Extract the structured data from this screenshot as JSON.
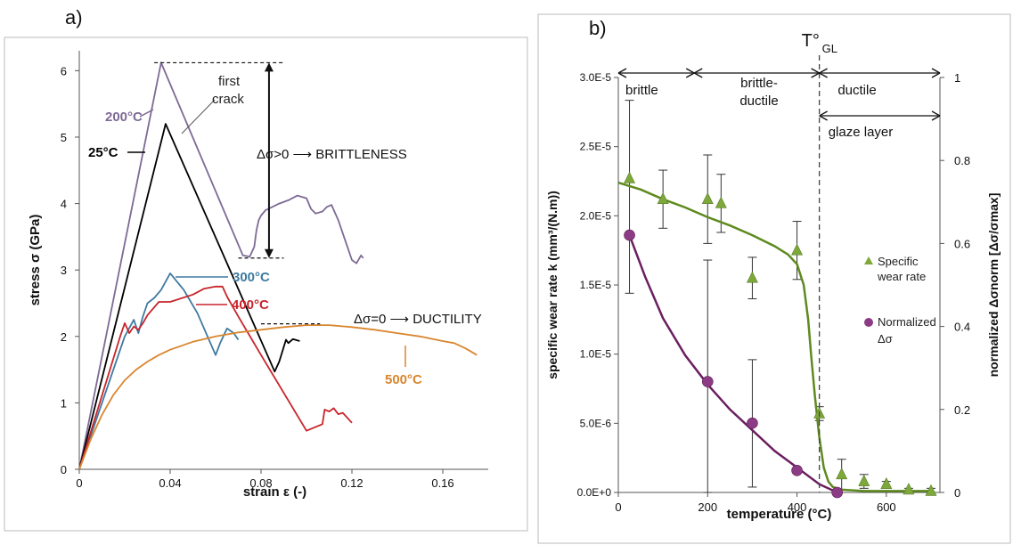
{
  "panels": {
    "a": {
      "label": "a)"
    },
    "b": {
      "label": "b)"
    }
  },
  "colors": {
    "c200": "#7d6a95",
    "c25": "#000000",
    "c300": "#3f7aa0",
    "c400": "#c8242b",
    "c500": "#d9862e",
    "wear": "#5e8a1f",
    "wear_marker": "#7ea83a",
    "norm": "#6a1f60",
    "norm_marker": "#8c3c85",
    "dashed": "#333333"
  },
  "chart_data": [
    {
      "panel": "a",
      "type": "line",
      "xlabel": "strain ε (-)",
      "ylabel": "stress σ (GPa)",
      "xlim": [
        0,
        0.18
      ],
      "ylim": [
        0,
        6.3
      ],
      "xticks": [
        "0",
        "0.04",
        "0.08",
        "0.12",
        "0.16"
      ],
      "xtick_values": [
        0,
        0.04,
        0.08,
        0.12,
        0.16
      ],
      "yticks": [
        "0",
        "1",
        "2",
        "3",
        "4",
        "5",
        "6"
      ],
      "ytick_values": [
        0,
        1,
        2,
        3,
        4,
        5,
        6
      ],
      "grid": false,
      "series": [
        {
          "name": "200°C",
          "color_key": "c200",
          "x": [
            0,
            0.036,
            0.072,
            0.075,
            0.077,
            0.078,
            0.079,
            0.08,
            0.082,
            0.085,
            0.088,
            0.092,
            0.096,
            0.1,
            0.102,
            0.104,
            0.107,
            0.109,
            0.111,
            0.114,
            0.116,
            0.118,
            0.12,
            0.122,
            0.124,
            0.125
          ],
          "y": [
            0,
            6.12,
            3.22,
            3.2,
            3.35,
            3.6,
            3.75,
            3.82,
            3.9,
            3.95,
            4.0,
            4.05,
            4.12,
            4.08,
            3.92,
            3.85,
            3.88,
            3.95,
            3.98,
            3.75,
            3.55,
            3.35,
            3.15,
            3.1,
            3.22,
            3.18
          ]
        },
        {
          "name": "25°C",
          "color_key": "c25",
          "x": [
            0,
            0.038,
            0.086,
            0.088,
            0.091,
            0.092,
            0.094,
            0.096,
            0.097
          ],
          "y": [
            0,
            5.2,
            1.47,
            1.62,
            1.95,
            1.9,
            1.96,
            1.94,
            1.93
          ]
        },
        {
          "name": "300°C",
          "color_key": "c300",
          "x": [
            0,
            0.02,
            0.024,
            0.026,
            0.028,
            0.03,
            0.033,
            0.036,
            0.04,
            0.046,
            0.052,
            0.06,
            0.062,
            0.065,
            0.068,
            0.07
          ],
          "y": [
            0,
            2.0,
            2.25,
            2.05,
            2.3,
            2.5,
            2.58,
            2.7,
            2.95,
            2.7,
            2.35,
            1.72,
            1.9,
            2.12,
            2.05,
            1.95
          ]
        },
        {
          "name": "400°C",
          "color_key": "c400",
          "x": [
            0,
            0.018,
            0.02,
            0.022,
            0.024,
            0.026,
            0.028,
            0.03,
            0.035,
            0.04,
            0.05,
            0.055,
            0.06,
            0.063,
            0.065,
            0.07,
            0.08,
            0.09,
            0.1,
            0.107,
            0.108,
            0.11,
            0.112,
            0.114,
            0.116,
            0.12
          ],
          "y": [
            0,
            2.0,
            2.2,
            2.05,
            2.15,
            2.1,
            2.2,
            2.32,
            2.52,
            2.52,
            2.63,
            2.72,
            2.75,
            2.75,
            2.6,
            2.3,
            1.72,
            1.15,
            0.58,
            0.68,
            0.9,
            0.87,
            0.92,
            0.83,
            0.85,
            0.7
          ]
        },
        {
          "name": "500°C",
          "color_key": "c500",
          "x": [
            0,
            0.005,
            0.01,
            0.015,
            0.02,
            0.025,
            0.03,
            0.035,
            0.04,
            0.05,
            0.06,
            0.07,
            0.08,
            0.09,
            0.1,
            0.11,
            0.12,
            0.13,
            0.14,
            0.15,
            0.16,
            0.165,
            0.17,
            0.175
          ],
          "y": [
            0,
            0.45,
            0.82,
            1.12,
            1.34,
            1.5,
            1.62,
            1.72,
            1.8,
            1.92,
            2.0,
            2.06,
            2.1,
            2.14,
            2.17,
            2.17,
            2.14,
            2.1,
            2.05,
            2.0,
            1.93,
            1.9,
            1.82,
            1.72
          ]
        }
      ],
      "labels": [
        "200°C",
        "25°C",
        "300°C",
        "400°C",
        "500°C"
      ],
      "annotations": {
        "first_crack": "first\ncrack",
        "brittleness": "Δσ>0 ⟶ BRITTLENESS",
        "ductility": "Δσ=0 ⟶ DUCTILITY"
      }
    },
    {
      "panel": "b",
      "type": "scatter",
      "xlabel": "temperature (°C)",
      "ylabel": "specific wear rate k (mm³/(N.m))",
      "y2label": "normalized Δσnorm [Δσ/σmax]",
      "xlim": [
        0,
        720
      ],
      "ylim": [
        0,
        3e-05
      ],
      "y2lim": [
        0,
        1
      ],
      "xticks": [
        "0",
        "200",
        "400",
        "600"
      ],
      "xtick_values": [
        0,
        200,
        400,
        600
      ],
      "yticks": [
        "0.0E+0",
        "5.0E-6",
        "1.0E-5",
        "1.5E-5",
        "2.0E-5",
        "2.5E-5",
        "3.0E-5"
      ],
      "ytick_values": [
        0,
        5e-06,
        1e-05,
        1.5e-05,
        2e-05,
        2.5e-05,
        3e-05
      ],
      "y2ticks": [
        "0",
        "0.2",
        "0.4",
        "0.6",
        "0.8",
        "1"
      ],
      "y2tick_values": [
        0,
        0.2,
        0.4,
        0.6,
        0.8,
        1
      ],
      "grid": false,
      "transition": {
        "label": "T°",
        "sub": "GL",
        "x": 450
      },
      "regions": [
        {
          "label": "brittle",
          "from": 0,
          "to": 170
        },
        {
          "label": "brittle-\nductile",
          "from": 170,
          "to": 450
        },
        {
          "label": "ductile",
          "from": 450,
          "to": 720
        },
        {
          "label": "glaze layer",
          "from": 450,
          "to": 720
        }
      ],
      "series": [
        {
          "name": "Specific\nwear rate",
          "axis": "left",
          "marker": "triangle",
          "points": [
            {
              "x": 25,
              "y": 2.27e-05,
              "err": 0
            },
            {
              "x": 100,
              "y": 2.12e-05,
              "err": 2.1e-06
            },
            {
              "x": 200,
              "y": 2.12e-05,
              "err": 3.2e-06
            },
            {
              "x": 230,
              "y": 2.09e-05,
              "err": 2.1e-06
            },
            {
              "x": 300,
              "y": 1.55e-05,
              "err": 1.5e-06
            },
            {
              "x": 400,
              "y": 1.75e-05,
              "err": 2.1e-06
            },
            {
              "x": 450,
              "y": 5.7e-06,
              "err": 5e-07
            },
            {
              "x": 500,
              "y": 1.3e-06,
              "err": 1.1e-06
            },
            {
              "x": 550,
              "y": 8e-07,
              "err": 5e-07
            },
            {
              "x": 600,
              "y": 6e-07,
              "err": 2e-07
            },
            {
              "x": 650,
              "y": 2e-07,
              "err": 1e-07
            },
            {
              "x": 700,
              "y": 1e-07,
              "err": 2e-07
            }
          ],
          "fit_x": [
            0,
            50,
            100,
            150,
            200,
            250,
            300,
            350,
            380,
            400,
            415,
            425,
            432,
            440,
            445,
            450,
            460,
            470,
            480,
            500,
            550,
            600,
            700
          ],
          "fit_y": [
            2.24e-05,
            2.19e-05,
            2.12e-05,
            2.06e-05,
            1.99e-05,
            1.93e-05,
            1.86e-05,
            1.78e-05,
            1.72e-05,
            1.65e-05,
            1.5e-05,
            1.25e-05,
            9.8e-06,
            7e-06,
            5.5e-06,
            4e-06,
            1.8e-06,
            8e-07,
            4e-07,
            2e-07,
            1e-07,
            1e-07,
            1e-07
          ]
        },
        {
          "name": "Normalized\nΔσ",
          "axis": "right",
          "marker": "circle",
          "points": [
            {
              "x": 25,
              "y": 0.62,
              "lo": 0.48,
              "hi": 0.945
            },
            {
              "x": 200,
              "y": 0.267,
              "lo": 0,
              "hi": 0.56
            },
            {
              "x": 300,
              "y": 0.167,
              "lo": 0.013,
              "hi": 0.32
            },
            {
              "x": 400,
              "y": 0.053,
              "lo": 0.053,
              "hi": 0.053
            },
            {
              "x": 490,
              "y": 0.0,
              "lo": 0,
              "hi": 0
            }
          ],
          "fit_x": [
            25,
            60,
            100,
            150,
            200,
            250,
            300,
            350,
            400,
            450,
            490
          ],
          "fit_y": [
            0.62,
            0.52,
            0.42,
            0.33,
            0.26,
            0.2,
            0.15,
            0.1,
            0.06,
            0.02,
            0.0
          ]
        }
      ]
    }
  ]
}
